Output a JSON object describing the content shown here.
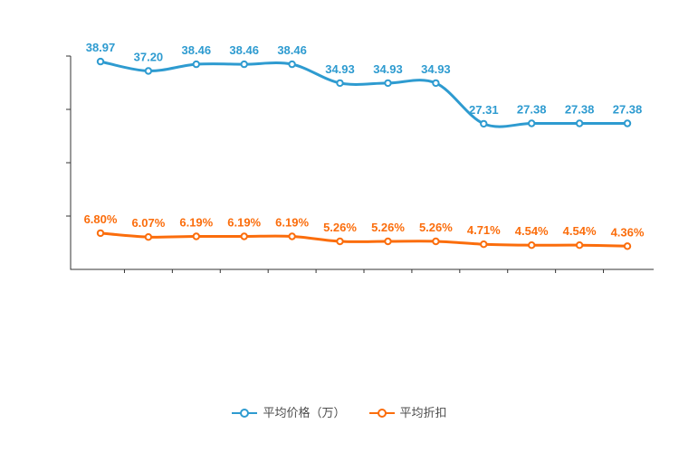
{
  "chart_data": {
    "type": "line",
    "smooth": true,
    "point_count": 12,
    "x_tick_labels": [],
    "ylim": [
      0,
      40
    ],
    "grid": false,
    "legend_position": "bottom",
    "background": "#ffffff",
    "axis_color": "#333333",
    "series": [
      {
        "name": "平均价格（万）",
        "color": "#2E9BD0",
        "values": [
          38.97,
          37.2,
          38.46,
          38.46,
          38.46,
          34.93,
          34.93,
          34.93,
          27.31,
          27.38,
          27.38,
          27.38
        ],
        "labels": [
          "38.97",
          "37.20",
          "38.46",
          "38.46",
          "38.46",
          "34.93",
          "34.93",
          "34.93",
          "27.31",
          "27.38",
          "27.38",
          "27.38"
        ]
      },
      {
        "name": "平均折扣",
        "color": "#FB6D0C",
        "values": [
          6.8,
          6.07,
          6.19,
          6.19,
          6.19,
          5.26,
          5.26,
          5.26,
          4.71,
          4.54,
          4.54,
          4.36
        ],
        "labels": [
          "6.80%",
          "6.07%",
          "6.19%",
          "6.19%",
          "6.19%",
          "5.26%",
          "5.26%",
          "5.26%",
          "4.71%",
          "4.54%",
          "4.54%",
          "4.36%"
        ]
      }
    ],
    "legend": {
      "items": [
        "平均价格（万）",
        "平均折扣"
      ]
    }
  }
}
